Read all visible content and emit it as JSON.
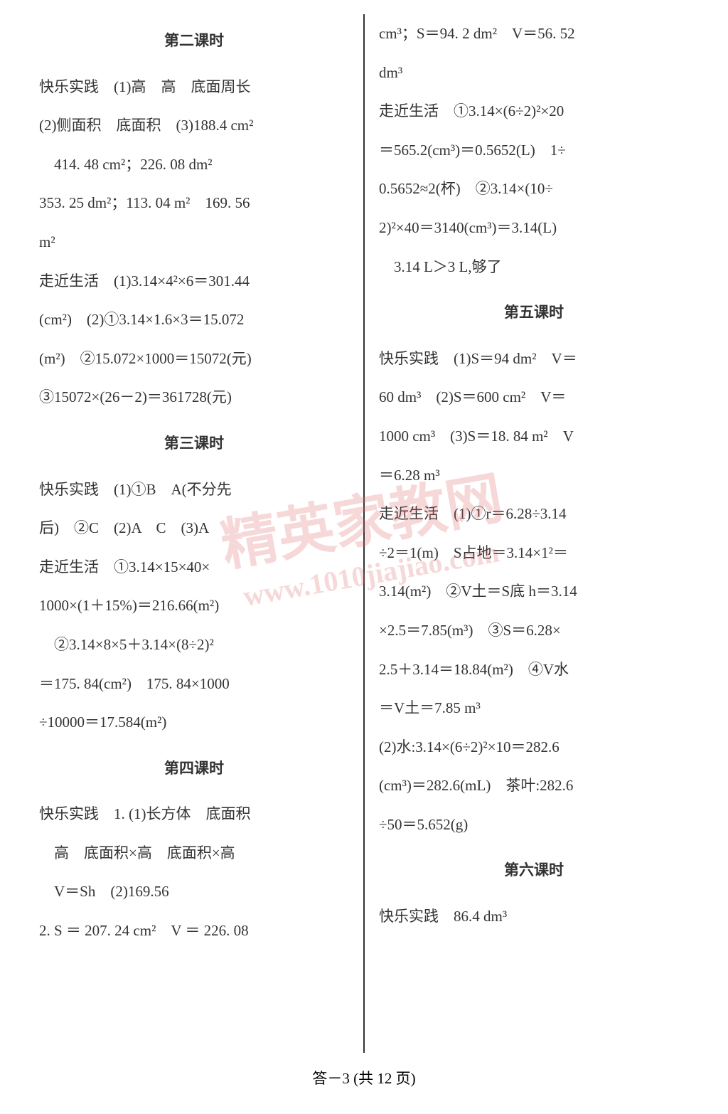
{
  "left": {
    "title1": "第二课时",
    "l1": "快乐实践　(1)高　高　底面周长",
    "l2": "(2)侧面积　底面积　(3)188.4 cm²",
    "l3": "　414. 48 cm²；226. 08 dm²",
    "l4": "353. 25 dm²；113. 04 m²　169. 56",
    "l5": "m²",
    "l6": "走近生活　(1)3.14×4²×6＝301.44",
    "l7": "(cm²)　(2)①3.14×1.6×3＝15.072",
    "l8": "(m²)　②15.072×1000＝15072(元)",
    "l9": "③15072×(26－2)＝361728(元)",
    "title2": "第三课时",
    "l10": "快乐实践　(1)①B　A(不分先",
    "l11": "后)　②C　(2)A　C　(3)A",
    "l12": "走近生活　①3.14×15×40×",
    "l13": "1000×(1＋15%)＝216.66(m²)",
    "l14": "　②3.14×8×5＋3.14×(8÷2)²",
    "l15": "＝175. 84(cm²)　175. 84×1000",
    "l16": "÷10000＝17.584(m²)",
    "title3": "第四课时",
    "l17": "快乐实践　1. (1)长方体　底面积",
    "l18": "　高　底面积×高　底面积×高",
    "l19": "　V＝Sh　(2)169.56",
    "l20": "2. S ＝ 207. 24 cm²　V ＝ 226. 08"
  },
  "right": {
    "r1": "cm³；S＝94. 2 dm²　V＝56. 52",
    "r2": "dm³",
    "r3": "走近生活　①3.14×(6÷2)²×20",
    "r4": "＝565.2(cm³)＝0.5652(L)　1÷",
    "r5": "0.5652≈2(杯)　②3.14×(10÷",
    "r6": "2)²×40＝3140(cm³)＝3.14(L)",
    "r7": "　3.14 L＞3 L,够了",
    "title4": "第五课时",
    "r8": "快乐实践　(1)S＝94 dm²　V＝",
    "r9": "60 dm³　(2)S＝600 cm²　V＝",
    "r10": "1000 cm³　(3)S＝18. 84 m²　V",
    "r11": "＝6.28 m³",
    "r12": "走近生活　(1)①r＝6.28÷3.14",
    "r13": "÷2＝1(m)　S占地＝3.14×1²＝",
    "r14": "3.14(m²)　②V土＝S底 h＝3.14",
    "r15": "×2.5＝7.85(m³)　③S＝6.28×",
    "r16": "2.5＋3.14＝18.84(m²)　④V水",
    "r17": "＝V土＝7.85 m³",
    "r18": "(2)水:3.14×(6÷2)²×10＝282.6",
    "r19": "(cm³)＝282.6(mL)　茶叶:282.6",
    "r20": "÷50＝5.652(g)",
    "title5": "第六课时",
    "r21": "快乐实践　86.4 dm³"
  },
  "footer": "答－3 (共 12 页)",
  "watermark": {
    "main": "精英家教网",
    "url": "www.1010jiajiao.com"
  }
}
